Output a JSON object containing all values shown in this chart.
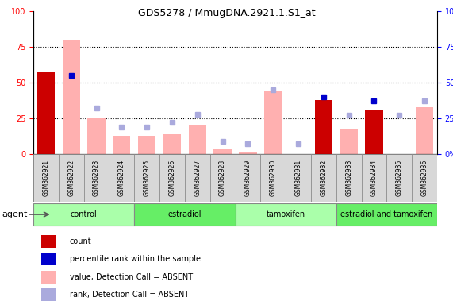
{
  "title": "GDS5278 / MmugDNA.2921.1.S1_at",
  "samples": [
    "GSM362921",
    "GSM362922",
    "GSM362923",
    "GSM362924",
    "GSM362925",
    "GSM362926",
    "GSM362927",
    "GSM362928",
    "GSM362929",
    "GSM362930",
    "GSM362931",
    "GSM362932",
    "GSM362933",
    "GSM362934",
    "GSM362935",
    "GSM362936"
  ],
  "count_values": [
    57,
    null,
    null,
    null,
    null,
    null,
    null,
    null,
    null,
    null,
    null,
    38,
    null,
    31,
    null,
    null
  ],
  "count_absent_values": [
    null,
    80,
    25,
    13,
    13,
    14,
    20,
    4,
    1,
    44,
    null,
    null,
    18,
    null,
    null,
    33
  ],
  "rank_values": [
    null,
    55,
    null,
    null,
    null,
    null,
    null,
    null,
    null,
    null,
    null,
    40,
    null,
    37,
    null,
    null
  ],
  "rank_absent_values": [
    null,
    null,
    32,
    19,
    19,
    22,
    28,
    9,
    7,
    45,
    7,
    null,
    27,
    null,
    27,
    37
  ],
  "groups": [
    {
      "label": "control",
      "start": 0,
      "end": 3
    },
    {
      "label": "estradiol",
      "start": 4,
      "end": 7
    },
    {
      "label": "tamoxifen",
      "start": 8,
      "end": 11
    },
    {
      "label": "estradiol and tamoxifen",
      "start": 12,
      "end": 15
    }
  ],
  "ylim_left": [
    0,
    100
  ],
  "ylim_right": [
    0,
    100
  ],
  "color_count": "#cc0000",
  "color_count_absent": "#ffb0b0",
  "color_rank": "#0000cc",
  "color_rank_absent": "#aaaadd",
  "green_light": "#aaffaa",
  "green_dark": "#66ee66",
  "legend_items": [
    {
      "label": "count",
      "color": "#cc0000"
    },
    {
      "label": "percentile rank within the sample",
      "color": "#0000cc"
    },
    {
      "label": "value, Detection Call = ABSENT",
      "color": "#ffb0b0"
    },
    {
      "label": "rank, Detection Call = ABSENT",
      "color": "#aaaadd"
    }
  ]
}
